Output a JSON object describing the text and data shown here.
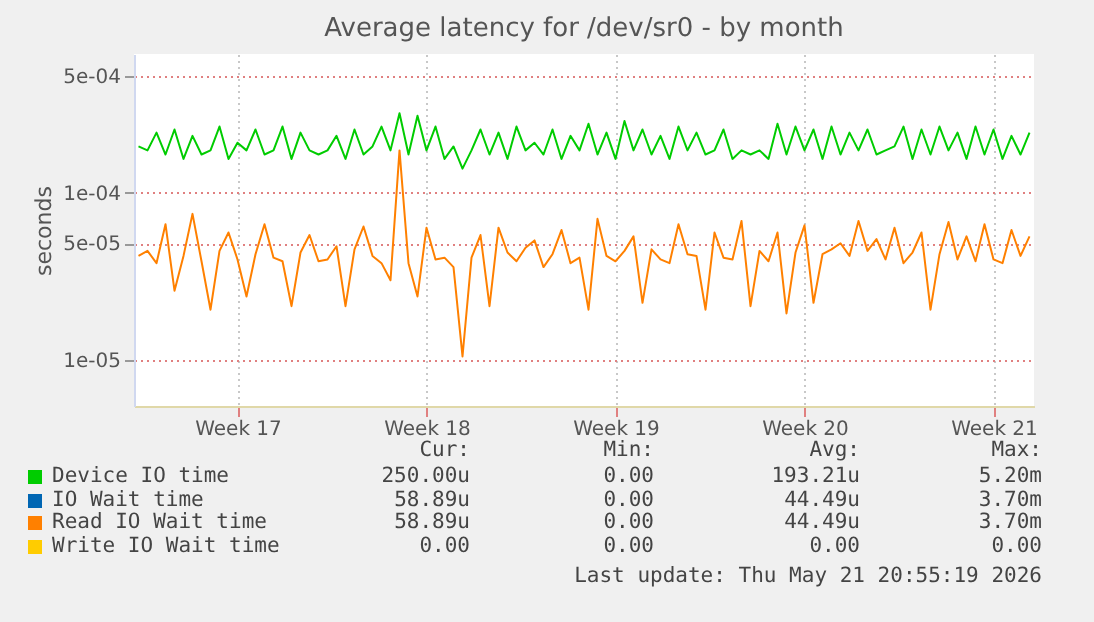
{
  "chart_data": {
    "type": "line",
    "title": "Average latency for /dev/sr0 - by month",
    "ylabel": "seconds",
    "log": "y",
    "grid": true,
    "legend": "bottom",
    "marker": "none",
    "line_style": "solid",
    "ylim": [
      5.3e-06,
      0.00068
    ],
    "yticks": [
      {
        "value": 1e-05,
        "label": "1e-05"
      },
      {
        "value": 5e-05,
        "label": "5e-05"
      },
      {
        "value": 0.0001,
        "label": "1e-04"
      },
      {
        "value": 0.0005,
        "label": "5e-04"
      }
    ],
    "categories": [
      null,
      null,
      null,
      null,
      null,
      null,
      null,
      null,
      null,
      null,
      null,
      "Week 17",
      null,
      null,
      null,
      null,
      null,
      null,
      null,
      null,
      null,
      null,
      null,
      null,
      null,
      null,
      null,
      null,
      null,
      null,
      null,
      null,
      "Week 18",
      null,
      null,
      null,
      null,
      null,
      null,
      null,
      null,
      null,
      null,
      null,
      null,
      null,
      null,
      null,
      null,
      null,
      null,
      null,
      null,
      "Week 19",
      null,
      null,
      null,
      null,
      null,
      null,
      null,
      null,
      null,
      null,
      null,
      null,
      null,
      null,
      null,
      null,
      null,
      null,
      null,
      null,
      "Week 20",
      null,
      null,
      null,
      null,
      null,
      null,
      null,
      null,
      null,
      null,
      null,
      null,
      null,
      null,
      null,
      null,
      null,
      null,
      null,
      null,
      "Week 21",
      null,
      null,
      null,
      null
    ],
    "series": [
      {
        "name": "Device IO time",
        "color": "#00cc00",
        "values": [
          0.00019,
          0.00018,
          0.00023,
          0.00017,
          0.00024,
          0.00016,
          0.00022,
          0.00017,
          0.00018,
          0.00025,
          0.00016,
          0.0002,
          0.00018,
          0.00024,
          0.00017,
          0.00018,
          0.00025,
          0.00016,
          0.00023,
          0.00018,
          0.00017,
          0.00018,
          0.00022,
          0.00016,
          0.00024,
          0.00017,
          0.00019,
          0.00025,
          0.00018,
          0.0003,
          0.00017,
          0.00029,
          0.00018,
          0.00025,
          0.00016,
          0.00019,
          0.00014,
          0.00018,
          0.00024,
          0.00017,
          0.00023,
          0.00016,
          0.00025,
          0.00018,
          0.0002,
          0.00017,
          0.00024,
          0.00016,
          0.00022,
          0.00018,
          0.00026,
          0.00017,
          0.00023,
          0.00016,
          0.00027,
          0.00018,
          0.00024,
          0.00017,
          0.00022,
          0.00016,
          0.00025,
          0.00018,
          0.00023,
          0.00017,
          0.00018,
          0.00024,
          0.00016,
          0.00018,
          0.00017,
          0.00018,
          0.00016,
          0.00026,
          0.00017,
          0.00025,
          0.00018,
          0.00024,
          0.00016,
          0.00025,
          0.00017,
          0.00023,
          0.00018,
          0.00024,
          0.00017,
          0.00018,
          0.00019,
          0.00025,
          0.00016,
          0.00024,
          0.00017,
          0.00025,
          0.00018,
          0.00023,
          0.00016,
          0.00025,
          0.00017,
          0.00024,
          0.00016,
          0.00022,
          0.00017,
          0.00023
        ]
      },
      {
        "name": "IO Wait time",
        "color": "#0066b3",
        "values": [
          null,
          null,
          null,
          null,
          null,
          null,
          null,
          null,
          null,
          null,
          null,
          null,
          null,
          null,
          null,
          null,
          null,
          null,
          null,
          null,
          null,
          null,
          null,
          null,
          null,
          null,
          null,
          null,
          null,
          null,
          null,
          null,
          null,
          null,
          null,
          null,
          null,
          null,
          null,
          null,
          null,
          null,
          null,
          null,
          null,
          null,
          null,
          null,
          null,
          null,
          null,
          null,
          null,
          null,
          null,
          null,
          null,
          null,
          null,
          null,
          null,
          null,
          null,
          null,
          null,
          null,
          null,
          null,
          null,
          null,
          null,
          null,
          null,
          null,
          null,
          null,
          null,
          null,
          null,
          null,
          null,
          null,
          null,
          null,
          null,
          null,
          null,
          null,
          null,
          null,
          null,
          null,
          null,
          null,
          null,
          null,
          null,
          null,
          null,
          null
        ]
      },
      {
        "name": "Read IO Wait time",
        "color": "#ff8000",
        "values": [
          4.2e-05,
          4.5e-05,
          3.8e-05,
          6.5e-05,
          2.6e-05,
          4.2e-05,
          7.5e-05,
          3.9e-05,
          2e-05,
          4.5e-05,
          5.8e-05,
          4e-05,
          2.4e-05,
          4.3e-05,
          6.5e-05,
          4.1e-05,
          3.9e-05,
          2.1e-05,
          4.4e-05,
          5.6e-05,
          3.9e-05,
          4e-05,
          4.8e-05,
          2.1e-05,
          4.6e-05,
          6.3e-05,
          4.2e-05,
          3.8e-05,
          3e-05,
          0.00018,
          3.8e-05,
          2.4e-05,
          6.2e-05,
          4e-05,
          4.1e-05,
          3.6e-05,
          1.05e-05,
          4.1e-05,
          5.6e-05,
          2.1e-05,
          6.2e-05,
          4.4e-05,
          3.9e-05,
          4.7e-05,
          5.2e-05,
          3.6e-05,
          4.3e-05,
          6e-05,
          3.8e-05,
          4.1e-05,
          2e-05,
          7e-05,
          4.2e-05,
          3.9e-05,
          4.5e-05,
          5.5e-05,
          2.2e-05,
          4.6e-05,
          4e-05,
          3.8e-05,
          6.5e-05,
          4.3e-05,
          4.2e-05,
          2e-05,
          5.8e-05,
          4.1e-05,
          4e-05,
          6.8e-05,
          2.1e-05,
          4.5e-05,
          3.9e-05,
          5.8e-05,
          1.9e-05,
          4.4e-05,
          6.4e-05,
          2.2e-05,
          4.3e-05,
          4.6e-05,
          5e-05,
          4.2e-05,
          6.8e-05,
          4.5e-05,
          5.3e-05,
          4e-05,
          6.2e-05,
          3.8e-05,
          4.4e-05,
          5.8e-05,
          2e-05,
          4.3e-05,
          6.7e-05,
          4e-05,
          5.5e-05,
          3.9e-05,
          6.5e-05,
          4e-05,
          3.8e-05,
          6e-05,
          4.2e-05,
          5.5e-05
        ]
      },
      {
        "name": "Write IO Wait time",
        "color": "#ffcc00",
        "values": [
          null,
          null,
          null,
          null,
          null,
          null,
          null,
          null,
          null,
          null,
          null,
          null,
          null,
          null,
          null,
          null,
          null,
          null,
          null,
          null,
          null,
          null,
          null,
          null,
          null,
          null,
          null,
          null,
          null,
          null,
          null,
          null,
          null,
          null,
          null,
          null,
          null,
          null,
          null,
          null,
          null,
          null,
          null,
          null,
          null,
          null,
          null,
          null,
          null,
          null,
          null,
          null,
          null,
          null,
          null,
          null,
          null,
          null,
          null,
          null,
          null,
          null,
          null,
          null,
          null,
          null,
          null,
          null,
          null,
          null,
          null,
          null,
          null,
          null,
          null,
          null,
          null,
          null,
          null,
          null,
          null,
          null,
          null,
          null,
          null,
          null,
          null,
          null,
          null,
          null,
          null,
          null,
          null,
          null,
          null,
          null,
          null,
          null,
          null,
          null
        ]
      }
    ],
    "annotations": [
      "Cur:",
      "Min:",
      "Avg:",
      "Max:",
      "250.00u",
      "0.00",
      "193.21u",
      "5.20m",
      "58.89u",
      "0.00",
      "44.49u",
      "3.70m",
      "58.89u",
      "0.00",
      "44.49u",
      "3.70m",
      "0.00",
      "0.00",
      "0.00",
      "0.00",
      "Last update: Thu May 21 20:55:19 2026"
    ]
  }
}
